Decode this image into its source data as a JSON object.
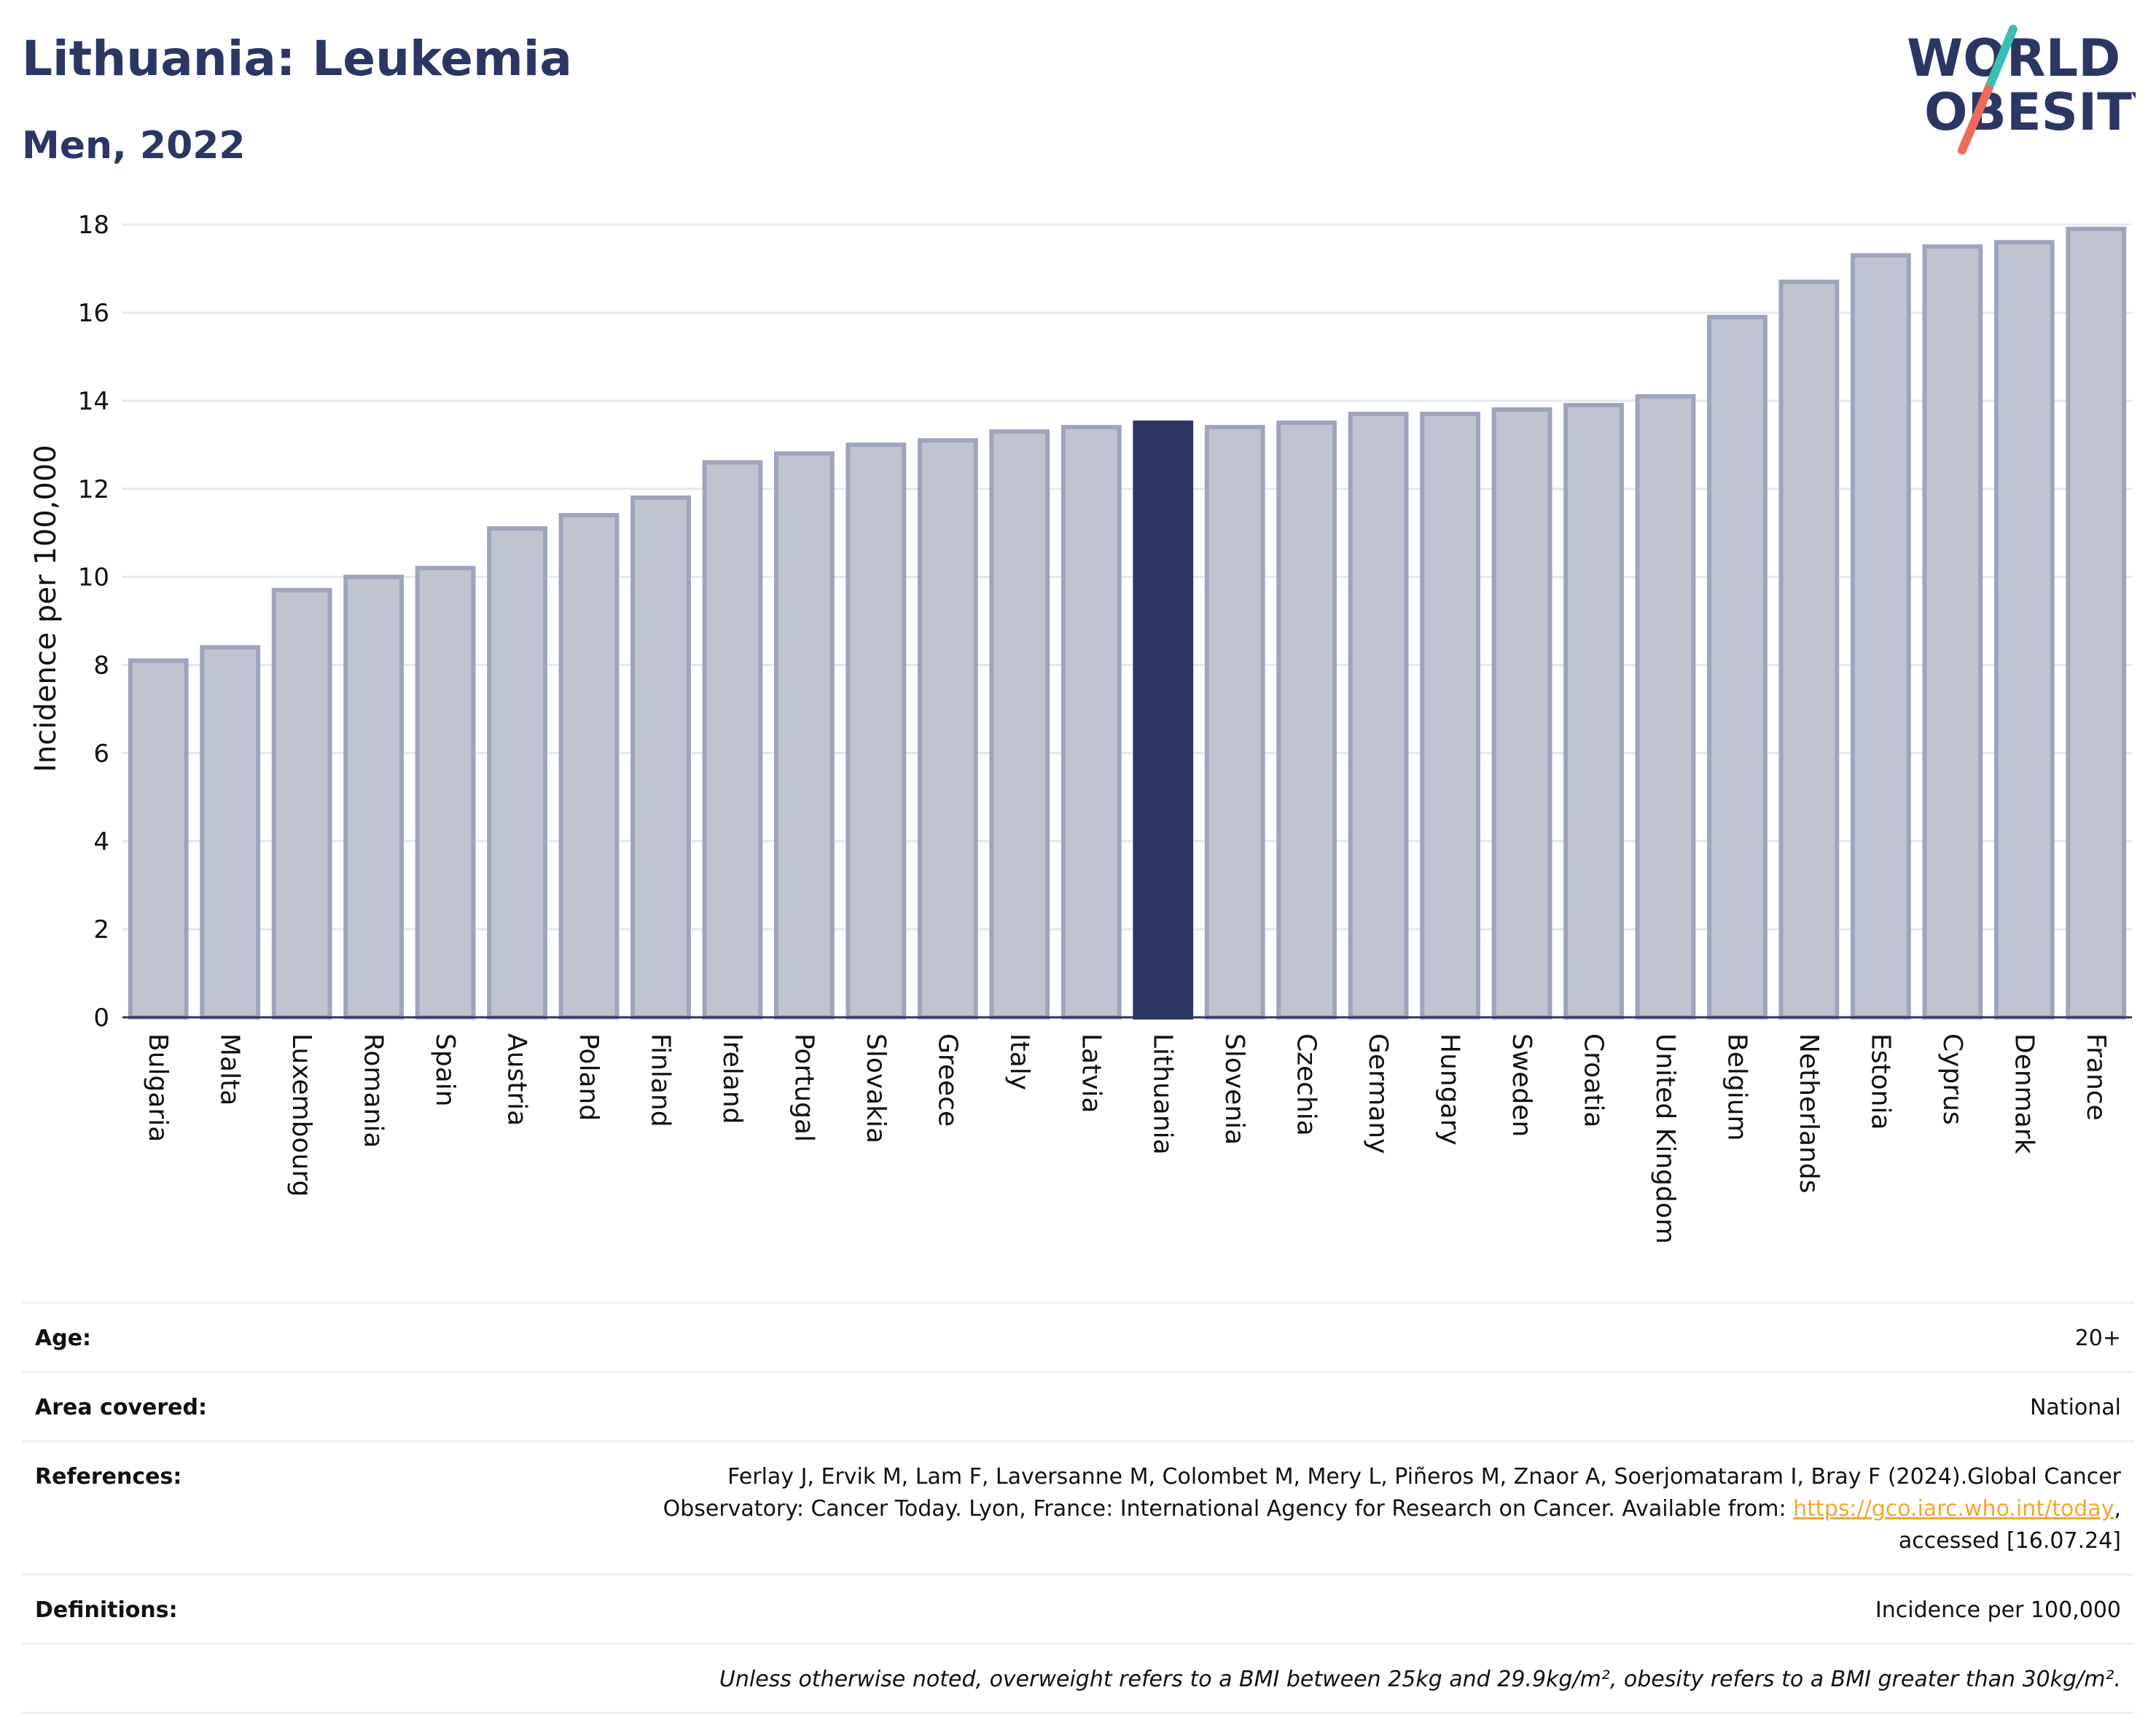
{
  "header": {
    "title": "Lithuania: Leukemia",
    "subtitle": "Men, 2022"
  },
  "logo": {
    "line1": "WORLD",
    "line2": "OBESITY",
    "colors": {
      "text": "#2b3663",
      "slash_top": "#3bbfb3",
      "slash_bottom": "#ef6a5a"
    }
  },
  "chart_data": {
    "type": "bar",
    "ylabel": "Incidence per 100,000",
    "xlabel": "",
    "ylim": [
      0,
      18.3
    ],
    "yticks": [
      0,
      2,
      4,
      6,
      8,
      10,
      12,
      14,
      16,
      18
    ],
    "grid": true,
    "highlight": "Lithuania",
    "colors": {
      "bar": "#c0c4d1",
      "bar_border": "#9ea4bb",
      "highlight": "#2b3663",
      "grid": "#e6e8ef",
      "axis": "#2b3663"
    },
    "categories": [
      "Bulgaria",
      "Malta",
      "Luxembourg",
      "Romania",
      "Spain",
      "Austria",
      "Poland",
      "Finland",
      "Ireland",
      "Portugal",
      "Slovakia",
      "Greece",
      "Italy",
      "Latvia",
      "Lithuania",
      "Slovenia",
      "Czechia",
      "Germany",
      "Hungary",
      "Sweden",
      "Croatia",
      "United Kingdom",
      "Belgium",
      "Netherlands",
      "Estonia",
      "Cyprus",
      "Denmark",
      "France"
    ],
    "values": [
      8.1,
      8.4,
      9.7,
      10.0,
      10.2,
      11.1,
      11.4,
      11.8,
      12.6,
      12.8,
      13.0,
      13.1,
      13.3,
      13.4,
      13.5,
      13.4,
      13.5,
      13.7,
      13.7,
      13.8,
      13.9,
      14.1,
      15.9,
      16.7,
      17.3,
      17.5,
      17.6,
      17.9
    ]
  },
  "info": {
    "age_label": "Age:",
    "age_value": "20+",
    "area_label": "Area covered:",
    "area_value": "National",
    "references_label": "References:",
    "references_line1": "Ferlay J, Ervik M, Lam F, Laversanne M, Colombet M, Mery L, Piñeros M, Znaor A, Soerjomataram I, Bray F (2024).Global Cancer",
    "references_line2_pre": "Observatory: Cancer Today. Lyon, France: International Agency for Research on Cancer. Available from: ",
    "references_link": "https://gco.iarc.who.int/today",
    "references_line2_post": ",",
    "references_line3": "accessed [16.07.24]",
    "definitions_label": "Definitions:",
    "definitions_value": "Incidence per 100,000",
    "note": "Unless otherwise noted, overweight refers to a BMI between 25kg and 29.9kg/m², obesity refers to a BMI greater than 30kg/m²."
  }
}
